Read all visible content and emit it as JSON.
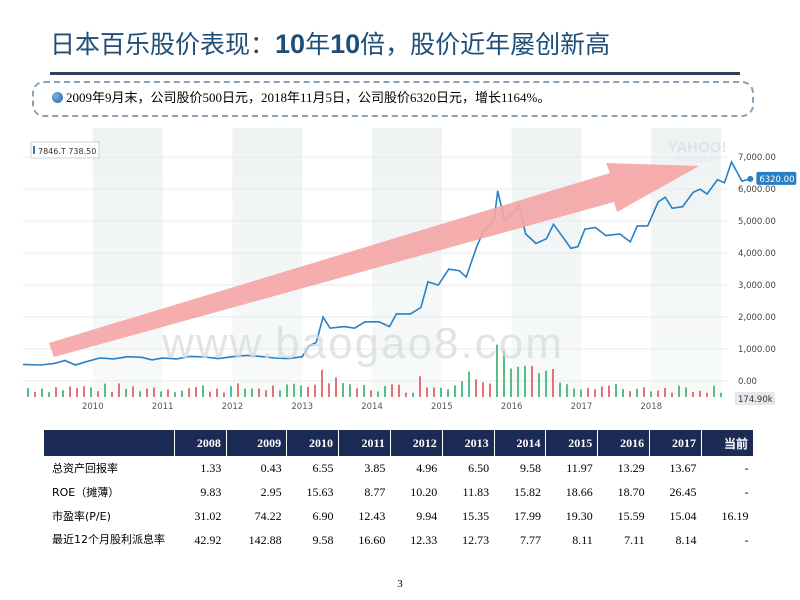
{
  "slide": {
    "title_a": "日本百乐股价表现：",
    "title_b": "10",
    "title_c": "年",
    "title_d": "10",
    "title_e": "倍，股价近年屡创新高",
    "callout": "2009年9月末，公司股价500日元，2018年11月5日，公司股价6320日元，增长1164%。",
    "page_number": "3"
  },
  "chart_data": {
    "type": "line",
    "ticker_label": "7846.T 738.50",
    "watermark_brand": "YAHOO!",
    "watermark_sub": "FINANCE",
    "site_watermark": "www.baogao8.com",
    "current_price_label": "6320.00",
    "volume_label": "174.90k",
    "x_tick_labels": [
      "2010",
      "2011",
      "2012",
      "2013",
      "2014",
      "2015",
      "2016",
      "2017",
      "2018"
    ],
    "y_tick_labels": [
      "7,000.00",
      "6,000.00",
      "5,000.00",
      "4,000.00",
      "3,000.00",
      "2,000.00",
      "1,000.00",
      "0.00"
    ],
    "ylim": [
      0,
      7600
    ],
    "xlim": [
      2009.0,
      2019.1
    ],
    "price_series": [
      [
        2009.0,
        520
      ],
      [
        2009.25,
        500
      ],
      [
        2009.45,
        550
      ],
      [
        2009.6,
        640
      ],
      [
        2009.75,
        500
      ],
      [
        2009.9,
        600
      ],
      [
        2010.1,
        720
      ],
      [
        2010.3,
        690
      ],
      [
        2010.5,
        760
      ],
      [
        2010.7,
        740
      ],
      [
        2010.85,
        660
      ],
      [
        2011.0,
        720
      ],
      [
        2011.2,
        690
      ],
      [
        2011.4,
        770
      ],
      [
        2011.6,
        750
      ],
      [
        2011.8,
        700
      ],
      [
        2012.0,
        760
      ],
      [
        2012.2,
        800
      ],
      [
        2012.4,
        770
      ],
      [
        2012.6,
        720
      ],
      [
        2012.8,
        700
      ],
      [
        2013.0,
        760
      ],
      [
        2013.1,
        1100
      ],
      [
        2013.2,
        1200
      ],
      [
        2013.3,
        2000
      ],
      [
        2013.4,
        1650
      ],
      [
        2013.6,
        1700
      ],
      [
        2013.75,
        1650
      ],
      [
        2013.9,
        1850
      ],
      [
        2014.1,
        1850
      ],
      [
        2014.25,
        1700
      ],
      [
        2014.35,
        2100
      ],
      [
        2014.55,
        2100
      ],
      [
        2014.7,
        2300
      ],
      [
        2014.8,
        3100
      ],
      [
        2014.95,
        3000
      ],
      [
        2015.1,
        3500
      ],
      [
        2015.25,
        3450
      ],
      [
        2015.35,
        3250
      ],
      [
        2015.5,
        4200
      ],
      [
        2015.6,
        4700
      ],
      [
        2015.75,
        5050
      ],
      [
        2015.8,
        5950
      ],
      [
        2015.9,
        5000
      ],
      [
        2016.05,
        5300
      ],
      [
        2016.1,
        5550
      ],
      [
        2016.2,
        4600
      ],
      [
        2016.35,
        4300
      ],
      [
        2016.5,
        4450
      ],
      [
        2016.6,
        4900
      ],
      [
        2016.75,
        4450
      ],
      [
        2016.85,
        4150
      ],
      [
        2016.95,
        4200
      ],
      [
        2017.05,
        4750
      ],
      [
        2017.2,
        4800
      ],
      [
        2017.35,
        4550
      ],
      [
        2017.55,
        4600
      ],
      [
        2017.7,
        4350
      ],
      [
        2017.8,
        4850
      ],
      [
        2017.95,
        4850
      ],
      [
        2018.1,
        5600
      ],
      [
        2018.2,
        5750
      ],
      [
        2018.3,
        5400
      ],
      [
        2018.45,
        5450
      ],
      [
        2018.6,
        5900
      ],
      [
        2018.7,
        6000
      ],
      [
        2018.8,
        5850
      ],
      [
        2018.95,
        6300
      ],
      [
        2019.05,
        6200
      ],
      [
        2019.15,
        6850
      ],
      [
        2019.3,
        6250
      ],
      [
        2019.42,
        6320
      ]
    ]
  },
  "table": {
    "headers": [
      "",
      "2008",
      "2009",
      "2010",
      "2011",
      "2012",
      "2013",
      "2014",
      "2015",
      "2016",
      "2017",
      "当前"
    ],
    "rows": [
      [
        "总资产回报率",
        "1.33",
        "0.43",
        "6.55",
        "3.85",
        "4.96",
        "6.50",
        "9.58",
        "11.97",
        "13.29",
        "13.67",
        "-"
      ],
      [
        "ROE（摊薄）",
        "9.83",
        "2.95",
        "15.63",
        "8.77",
        "10.20",
        "11.83",
        "15.82",
        "18.66",
        "18.70",
        "26.45",
        "-"
      ],
      [
        "市盈率(P/E)",
        "31.02",
        "74.22",
        "6.90",
        "12.43",
        "9.94",
        "15.35",
        "17.99",
        "19.30",
        "15.59",
        "15.04",
        "16.19"
      ],
      [
        "最近12个月股利派息率",
        "42.92",
        "142.88",
        "9.58",
        "16.60",
        "12.33",
        "12.73",
        "7.77",
        "8.11",
        "7.11",
        "8.14",
        "-"
      ]
    ]
  },
  "colors": {
    "title": "#1f4e79",
    "price_line": "#2a7fc4",
    "arrow": "#f4a6a6",
    "table_header": "#1c2b56",
    "volume_up": "#3cb371",
    "volume_down": "#e05a5a"
  }
}
